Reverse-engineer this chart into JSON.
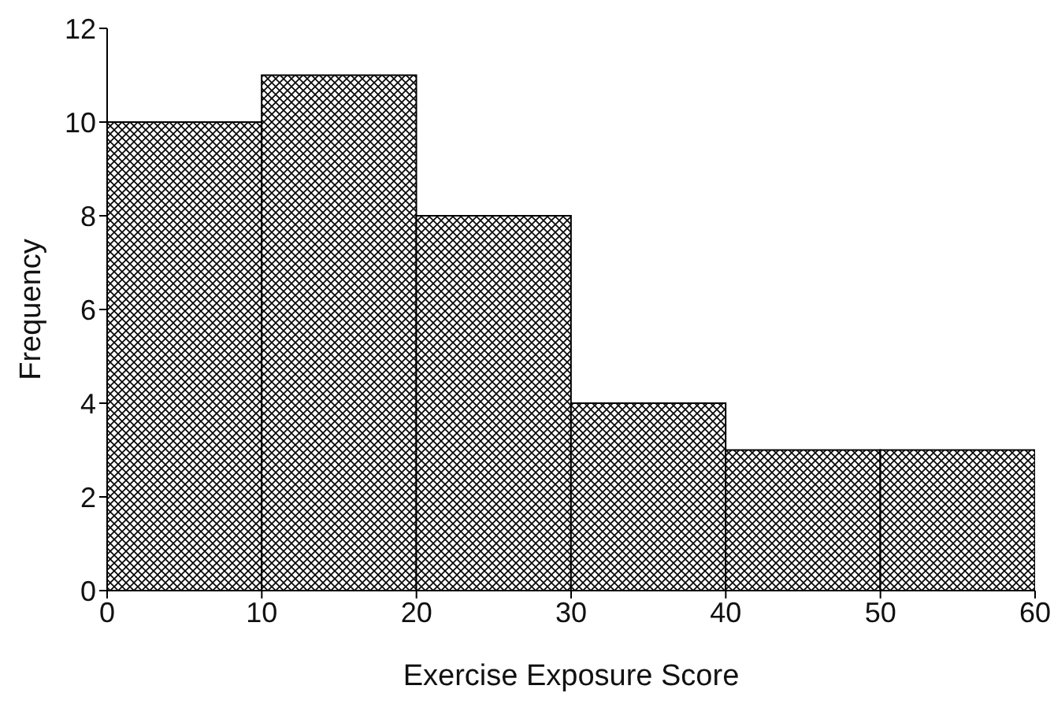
{
  "chart_data": {
    "type": "histogram",
    "xlabel": "Exercise Exposure Score",
    "ylabel": "Frequency",
    "bins": [
      0,
      10,
      20,
      30,
      40,
      50,
      60
    ],
    "values": [
      10,
      11,
      8,
      4,
      3,
      3
    ],
    "color": "#000000",
    "xlim": [
      0,
      60
    ],
    "xticks": [
      0,
      10,
      20,
      30,
      40,
      50,
      60
    ],
    "ylim": [
      0,
      12
    ],
    "yticks": [
      0,
      2,
      4,
      6,
      8,
      10,
      12
    ],
    "grid": false,
    "legend": false
  }
}
